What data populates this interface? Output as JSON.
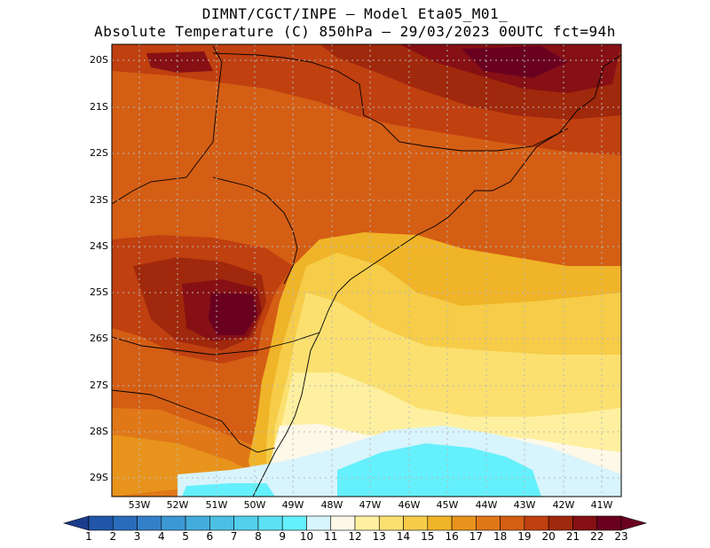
{
  "header": {
    "line1": "DIMNT/CGCT/INPE –  Model Eta05_M01_",
    "line2": "Absolute Temperature (C) 850hPa –  29/03/2023 00UTC fct=94h"
  },
  "map": {
    "lat_labels": [
      "20S",
      "21S",
      "22S",
      "23S",
      "24S",
      "25S",
      "26S",
      "27S",
      "28S",
      "29S"
    ],
    "lon_labels": [
      "53W",
      "52W",
      "51W",
      "50W",
      "49W",
      "48W",
      "47W",
      "46W",
      "45W",
      "44W",
      "43W",
      "42W",
      "41W"
    ],
    "lat_range": [
      -29.4,
      -19.8
    ],
    "lon_range": [
      -53.8,
      -40.6
    ],
    "grid": true
  },
  "colorbar": {
    "labels": [
      "1",
      "2",
      "3",
      "4",
      "5",
      "6",
      "7",
      "8",
      "9",
      "10",
      "11",
      "12",
      "13",
      "14",
      "15",
      "16",
      "17",
      "18",
      "19",
      "20",
      "21",
      "22",
      "23"
    ],
    "colors": [
      "#1a3c8c",
      "#2156a8",
      "#2a6cbc",
      "#3480c8",
      "#3c98d4",
      "#44acdc",
      "#4cc0e4",
      "#54d0ec",
      "#5ce0f4",
      "#64f0fc",
      "#d8f4fc",
      "#fef8e8",
      "#fef0a0",
      "#fbe070",
      "#f6cc48",
      "#f0b428",
      "#e8941c",
      "#e07818",
      "#d45e14",
      "#c04010",
      "#a0280c",
      "#861014",
      "#6a0020"
    ]
  }
}
